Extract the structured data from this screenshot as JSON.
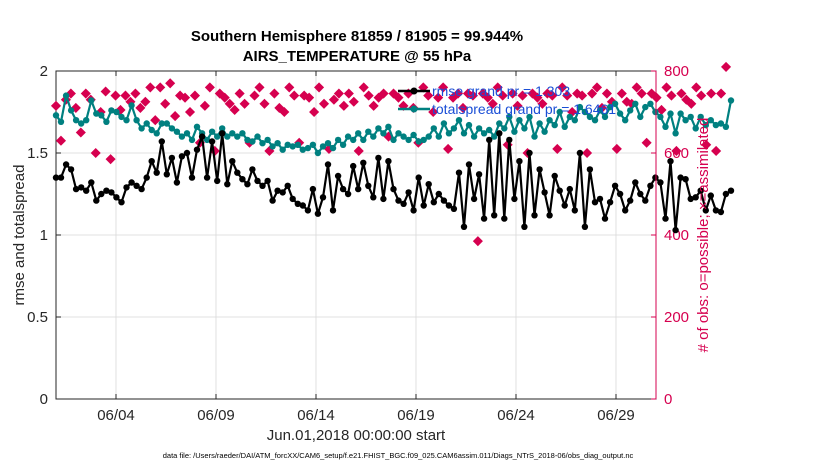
{
  "chart_data": {
    "type": "line",
    "title_line1": "Southern Hemisphere 81859 / 81905 = 99.944%",
    "title_line2": "AIRS_TEMPERATURE @ 55 hPa",
    "xlabel": "Jun.01,2018 00:00:00 start",
    "ylabel": "rmse and totalspread",
    "y2label": "# of obs: o=possible; ×=assimilated",
    "footer": "data file: /Users/raeder/DAI/ATM_forcXX/CAM6_setup/f.e21.FHIST_BGC.f09_025.CAM6assim.011/Diags_NTrS_2018-06/obs_diag_output.nc",
    "xlim": [
      1.0,
      31.0
    ],
    "ylim": [
      0,
      2
    ],
    "y2lim": [
      0,
      800
    ],
    "x_ticks": [
      4,
      9,
      14,
      19,
      24,
      29
    ],
    "x_tick_labels": [
      "06/04",
      "06/09",
      "06/14",
      "06/19",
      "06/24",
      "06/29"
    ],
    "y_ticks": [
      0,
      0.5,
      1,
      1.5,
      2
    ],
    "y_tick_labels": [
      "0",
      "0.5",
      "1",
      "1.5",
      "2"
    ],
    "y2_ticks": [
      0,
      200,
      400,
      600,
      800
    ],
    "y2_tick_labels": [
      "0",
      "200",
      "400",
      "600",
      "800"
    ],
    "grid": true,
    "legend_position": "top-right",
    "colors": {
      "rmse": "#000000",
      "spread": "#008080",
      "obs": "#d6004f"
    },
    "x_step_days": 0.25,
    "series": [
      {
        "name": "rmse grand pr = 1.303",
        "axis": "left",
        "values": [
          1.35,
          1.35,
          1.43,
          1.4,
          1.28,
          1.29,
          1.27,
          1.32,
          1.21,
          1.25,
          1.27,
          1.26,
          1.23,
          1.2,
          1.29,
          1.32,
          1.3,
          1.28,
          1.35,
          1.45,
          1.38,
          1.57,
          1.37,
          1.47,
          1.32,
          1.48,
          1.5,
          1.35,
          1.52,
          1.6,
          1.35,
          1.57,
          1.33,
          1.62,
          1.31,
          1.45,
          1.38,
          1.34,
          1.31,
          1.4,
          1.33,
          1.3,
          1.33,
          1.21,
          1.27,
          1.26,
          1.3,
          1.22,
          1.19,
          1.18,
          1.15,
          1.28,
          1.13,
          1.23,
          1.43,
          1.15,
          1.36,
          1.28,
          1.25,
          1.42,
          1.28,
          1.44,
          1.3,
          1.23,
          1.47,
          1.22,
          1.45,
          1.28,
          1.21,
          1.19,
          1.26,
          1.15,
          1.35,
          1.18,
          1.31,
          1.2,
          1.25,
          1.21,
          1.18,
          1.16,
          1.38,
          1.05,
          1.43,
          1.22,
          1.37,
          1.1,
          1.58,
          1.12,
          1.62,
          1.1,
          1.58,
          1.22,
          1.45,
          1.05,
          1.5,
          1.12,
          1.4,
          1.26,
          1.12,
          1.36,
          1.27,
          1.18,
          1.28,
          1.15,
          1.5,
          1.05,
          1.4,
          1.2,
          1.22,
          1.1,
          1.2,
          1.3,
          1.25,
          1.15,
          1.21,
          1.32,
          1.25,
          1.21,
          1.3,
          1.35,
          1.32,
          1.1,
          1.45,
          1.03,
          1.35,
          1.34,
          1.22,
          1.23,
          1.27,
          1.15,
          1.24,
          1.15,
          1.14,
          1.25,
          1.27
        ],
        "markers": "circle"
      },
      {
        "name": "totalspread grand pr = 1.6461",
        "axis": "left",
        "values": [
          1.73,
          1.69,
          1.85,
          1.76,
          1.7,
          1.68,
          1.7,
          1.82,
          1.74,
          1.73,
          1.69,
          1.76,
          1.75,
          1.72,
          1.7,
          1.79,
          1.7,
          1.65,
          1.68,
          1.64,
          1.62,
          1.68,
          1.68,
          1.65,
          1.63,
          1.6,
          1.62,
          1.58,
          1.66,
          1.62,
          1.58,
          1.63,
          1.6,
          1.65,
          1.6,
          1.62,
          1.6,
          1.62,
          1.58,
          1.57,
          1.6,
          1.56,
          1.58,
          1.54,
          1.56,
          1.52,
          1.55,
          1.54,
          1.55,
          1.52,
          1.53,
          1.55,
          1.5,
          1.54,
          1.56,
          1.53,
          1.58,
          1.55,
          1.6,
          1.58,
          1.62,
          1.58,
          1.63,
          1.6,
          1.65,
          1.62,
          1.66,
          1.58,
          1.62,
          1.6,
          1.58,
          1.61,
          1.57,
          1.58,
          1.6,
          1.65,
          1.6,
          1.68,
          1.62,
          1.65,
          1.7,
          1.62,
          1.67,
          1.6,
          1.65,
          1.62,
          1.64,
          1.6,
          1.68,
          1.65,
          1.72,
          1.63,
          1.7,
          1.65,
          1.72,
          1.6,
          1.68,
          1.63,
          1.7,
          1.67,
          1.75,
          1.66,
          1.72,
          1.7,
          1.78,
          1.75,
          1.72,
          1.7,
          1.76,
          1.72,
          1.78,
          1.8,
          1.74,
          1.7,
          1.76,
          1.8,
          1.72,
          1.78,
          1.8,
          1.75,
          1.72,
          1.66,
          1.74,
          1.62,
          1.74,
          1.7,
          1.72,
          1.65,
          1.72,
          1.67,
          1.7,
          1.67,
          1.68,
          1.66,
          1.82
        ],
        "markers": "circle"
      },
      {
        "name": "obs possible",
        "axis": "right",
        "marker": "o",
        "values": [
          715,
          630,
          730,
          745,
          710,
          650,
          745,
          730,
          600,
          700,
          750,
          585,
          740,
          705,
          740,
          725,
          745,
          710,
          725,
          760,
          680,
          760,
          720,
          770,
          690,
          740,
          735,
          700,
          740,
          625,
          715,
          760,
          605,
          745,
          735,
          720,
          705,
          745,
          720,
          625,
          740,
          760,
          720,
          605,
          745,
          710,
          700,
          760,
          740,
          625,
          740,
          735,
          700,
          760,
          720,
          610,
          730,
          745,
          715,
          745,
          725,
          605,
          760,
          740,
          715,
          735,
          745,
          640,
          745,
          735,
          715,
          745,
          710,
          625,
          760,
          740,
          700,
          735,
          760,
          610,
          735,
          745,
          710,
          745,
          740,
          385,
          745,
          735,
          720,
          760,
          740,
          620,
          745,
          715,
          740,
          600,
          745,
          735,
          720,
          745,
          740,
          610,
          760,
          740,
          700,
          745,
          740,
          600,
          745,
          760,
          710,
          745,
          725,
          610,
          745,
          725,
          720,
          760,
          745,
          625,
          745,
          735,
          705,
          760,
          740,
          605,
          745,
          730,
          720,
          760,
          740,
          620,
          745,
          605,
          745,
          810
        ],
        "visible": true
      }
    ]
  }
}
